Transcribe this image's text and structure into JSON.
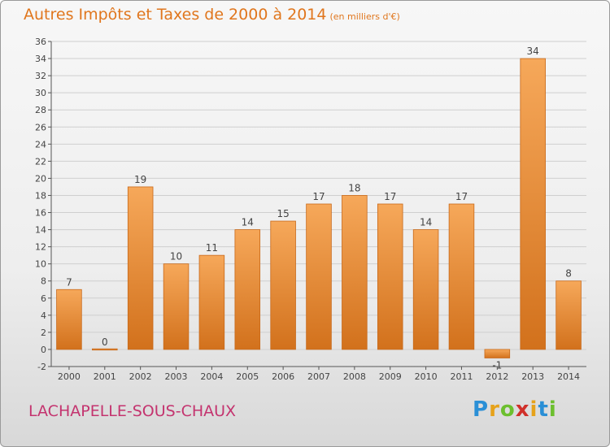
{
  "title": "Autres Impôts et Taxes de 2000 à 2014",
  "unit_note": "(en milliers d'€)",
  "commune": "LACHAPELLE-SOUS-CHAUX",
  "brand": {
    "letters": [
      "P",
      "r",
      "o",
      "x",
      "i",
      "t",
      "i"
    ],
    "colors": [
      "#2a8fd6",
      "#e6a21a",
      "#6cbf2e",
      "#d0302a",
      "#e6a21a",
      "#2a8fd6",
      "#6cbf2e"
    ]
  },
  "colors": {
    "bar_top": "#f6a85a",
    "bar_bottom": "#d2711c",
    "bar_edge": "#c8691a",
    "grid": "#cfcfcf",
    "axis": "#555555",
    "label": "#444444"
  },
  "chart_data": {
    "type": "bar",
    "categories": [
      "2000",
      "2001",
      "2002",
      "2003",
      "2004",
      "2005",
      "2006",
      "2007",
      "2008",
      "2009",
      "2010",
      "2011",
      "2012",
      "2013",
      "2014"
    ],
    "values": [
      7,
      0,
      19,
      10,
      11,
      14,
      15,
      17,
      18,
      17,
      14,
      17,
      -1,
      34,
      8
    ],
    "data_labels": [
      "7",
      "0",
      "19",
      "10",
      "11",
      "14",
      "15",
      "17",
      "18",
      "17",
      "14",
      "17",
      "-1",
      "34",
      "8"
    ],
    "ylim": [
      -2,
      36
    ],
    "yticks": [
      -2,
      0,
      2,
      4,
      6,
      8,
      10,
      12,
      14,
      16,
      18,
      20,
      22,
      24,
      26,
      28,
      30,
      32,
      34,
      36
    ],
    "grid": true
  }
}
